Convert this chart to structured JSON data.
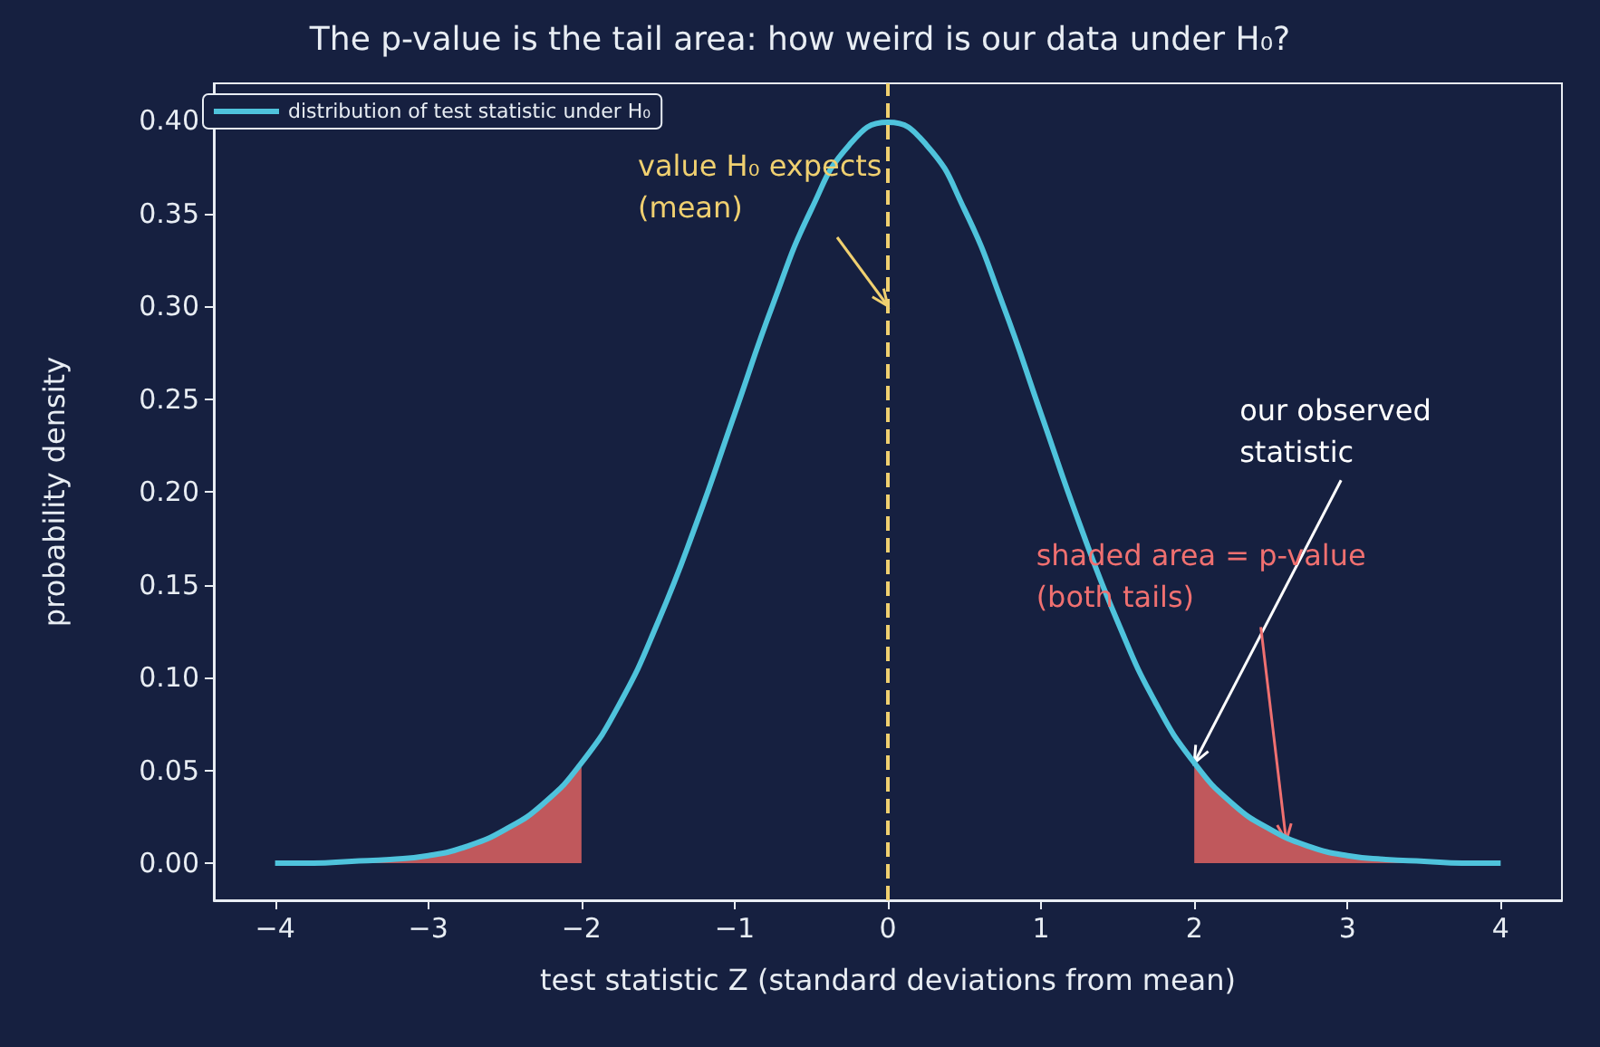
{
  "chart_data": {
    "type": "line",
    "title": "The p-value is the tail area: how weird is our data under H₀?",
    "xlabel": "test statistic Z (standard deviations from mean)",
    "ylabel": "probability density",
    "series": [
      {
        "name": "distribution of test statistic under H₀",
        "color": "#4fc3dc",
        "x": [
          -4,
          -3.75,
          -3.5,
          -3.25,
          -3,
          -2.75,
          -2.5,
          -2.25,
          -2,
          -1.75,
          -1.5,
          -1.25,
          -1,
          -0.75,
          -0.5,
          -0.25,
          0,
          0.25,
          0.5,
          0.75,
          1,
          1.25,
          1.5,
          1.75,
          2,
          2.25,
          2.5,
          2.75,
          3,
          3.25,
          3.5,
          3.75,
          4
        ],
        "values": [
          0.0,
          0.0,
          0.001,
          0.002,
          0.004,
          0.009,
          0.018,
          0.032,
          0.054,
          0.086,
          0.13,
          0.183,
          0.242,
          0.301,
          0.352,
          0.387,
          0.399,
          0.387,
          0.352,
          0.301,
          0.242,
          0.183,
          0.13,
          0.086,
          0.054,
          0.032,
          0.018,
          0.009,
          0.004,
          0.002,
          0.001,
          0.0,
          0.0
        ]
      },
      {
        "type": "area",
        "color": "#c0585c",
        "x": [
          -4,
          -3.75,
          -3.5,
          -3.25,
          -3,
          -2.75,
          -2.5,
          -2.25,
          -2
        ],
        "values": [
          0.0,
          0.0,
          0.001,
          0.002,
          0.004,
          0.009,
          0.018,
          0.032,
          0.054
        ]
      },
      {
        "type": "area",
        "color": "#c0585c",
        "x": [
          2,
          2.25,
          2.5,
          2.75,
          3,
          3.25,
          3.5,
          3.75,
          4
        ],
        "values": [
          0.054,
          0.032,
          0.018,
          0.009,
          0.004,
          0.002,
          0.001,
          0.0,
          0.0
        ]
      }
    ],
    "ref_lines": [
      {
        "axis": "x",
        "value": 0,
        "color": "#f0d070",
        "line_style": "dashed"
      }
    ],
    "annotations": [
      {
        "text": "value H₀ expects\n(mean)",
        "x": 0,
        "y": 0.3
      },
      {
        "text": "our observed\nstatistic",
        "x": 2,
        "y": 0.054
      },
      {
        "text": "shaded area = p-value\n(both tails)",
        "x": 2.6,
        "y": 0.012
      }
    ],
    "xlim": [
      -4.4,
      4.4
    ],
    "xticks": [
      {
        "value": -4,
        "label": "−4"
      },
      {
        "value": -3,
        "label": "−3"
      },
      {
        "value": -2,
        "label": "−2"
      },
      {
        "value": -1,
        "label": "−1"
      },
      0,
      1,
      2,
      3,
      4
    ],
    "ylim": [
      -0.02,
      0.42
    ],
    "yticks": [
      {
        "value": 0,
        "label": "0.00"
      },
      {
        "value": 0.05,
        "label": "0.05"
      },
      {
        "value": 0.1,
        "label": "0.10"
      },
      {
        "value": 0.15,
        "label": "0.15"
      },
      {
        "value": 0.2,
        "label": "0.20"
      },
      {
        "value": 0.25,
        "label": "0.25"
      },
      {
        "value": 0.3,
        "label": "0.30"
      },
      {
        "value": 0.35,
        "label": "0.35"
      },
      {
        "value": 0.4,
        "label": "0.40"
      }
    ],
    "grid": false,
    "legend": "top left",
    "marker": "none",
    "line_style": "solid"
  }
}
